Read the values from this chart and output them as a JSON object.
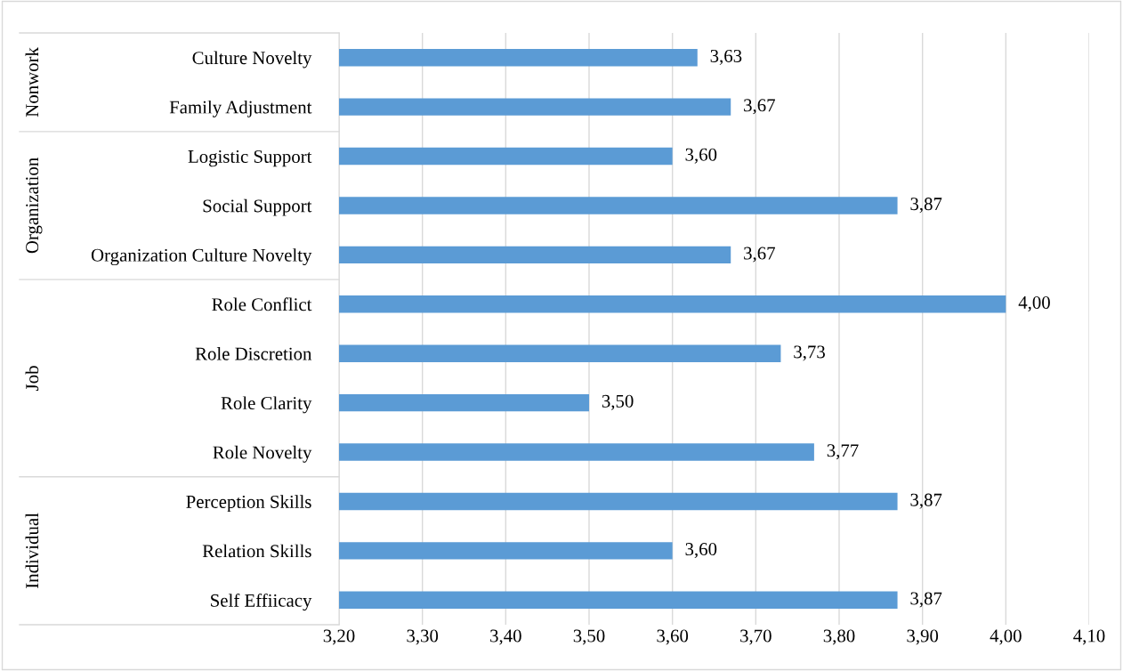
{
  "chart_data": {
    "type": "bar",
    "orientation": "horizontal",
    "categories": [
      "Culture Novelty",
      "Family Adjustment",
      "Logistic Support",
      "Social Support",
      "Organization Culture Novelty",
      "Role Conflict",
      "Role Discretion",
      "Role Clarity",
      "Role Novelty",
      "Perception Skills",
      "Relation Skills",
      "Self Effiicacy"
    ],
    "values": [
      3.63,
      3.67,
      3.6,
      3.87,
      3.67,
      4.0,
      3.73,
      3.5,
      3.77,
      3.87,
      3.6,
      3.87
    ],
    "value_labels": [
      "3,63",
      "3,67",
      "3,60",
      "3,87",
      "3,67",
      "4,00",
      "3,73",
      "3,50",
      "3,77",
      "3,87",
      "3,60",
      "3,87"
    ],
    "color": "#5b9bd5",
    "xlim": [
      3.2,
      4.1
    ],
    "xticks": [
      {
        "value": 3.2,
        "label": "3,20"
      },
      {
        "value": 3.3,
        "label": "3,30"
      },
      {
        "value": 3.4,
        "label": "3,40"
      },
      {
        "value": 3.5,
        "label": "3,50"
      },
      {
        "value": 3.6,
        "label": "3,60"
      },
      {
        "value": 3.7,
        "label": "3,70"
      },
      {
        "value": 3.8,
        "label": "3,80"
      },
      {
        "value": 3.9,
        "label": "3,90"
      },
      {
        "value": 4.0,
        "label": "4,00"
      },
      {
        "value": 4.1,
        "label": "4,10"
      }
    ],
    "grid": "x",
    "annotations": [
      "Nonwork",
      "Organization",
      "Job",
      "Individual"
    ]
  }
}
